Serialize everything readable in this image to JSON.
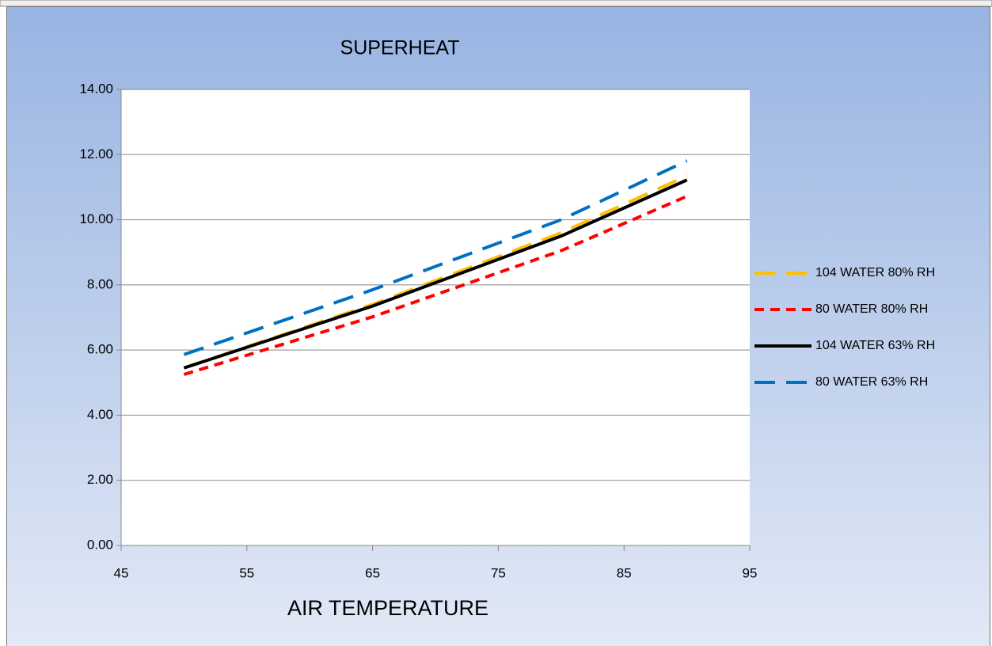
{
  "chart_data": {
    "type": "line",
    "title": "SUPERHEAT",
    "x_label": "AIR TEMPERATURE",
    "x": [
      50,
      65,
      80,
      90
    ],
    "series": [
      {
        "name": "104 WATER 80% RH",
        "color": "#ffc000",
        "line_style": "long-dash",
        "values": [
          5.45,
          7.4,
          9.6,
          11.35
        ]
      },
      {
        "name": "80 WATER 80% RH",
        "color": "#ff0000",
        "line_style": "dash",
        "values": [
          5.25,
          7.02,
          9.05,
          10.72
        ]
      },
      {
        "name": "104 WATER 63% RH",
        "color": "#000000",
        "line_style": "solid",
        "values": [
          5.45,
          7.35,
          9.5,
          11.22
        ]
      },
      {
        "name": "80 WATER 63% RH",
        "color": "#0070c0",
        "line_style": "long-dash",
        "values": [
          5.86,
          7.85,
          10.0,
          11.81
        ]
      }
    ],
    "xlim": [
      45,
      95
    ],
    "xticks": [
      45,
      55,
      65,
      75,
      85,
      95
    ],
    "ylim": [
      0,
      14
    ],
    "yticks": [
      {
        "value": 0,
        "label": "0.00"
      },
      {
        "value": 2,
        "label": "2.00"
      },
      {
        "value": 4,
        "label": "4.00"
      },
      {
        "value": 6,
        "label": "6.00"
      },
      {
        "value": 8,
        "label": "8.00"
      },
      {
        "value": 10,
        "label": "10.00"
      },
      {
        "value": 12,
        "label": "12.00"
      },
      {
        "value": 14,
        "label": "14.00"
      }
    ],
    "grid": true,
    "legend": "right"
  }
}
